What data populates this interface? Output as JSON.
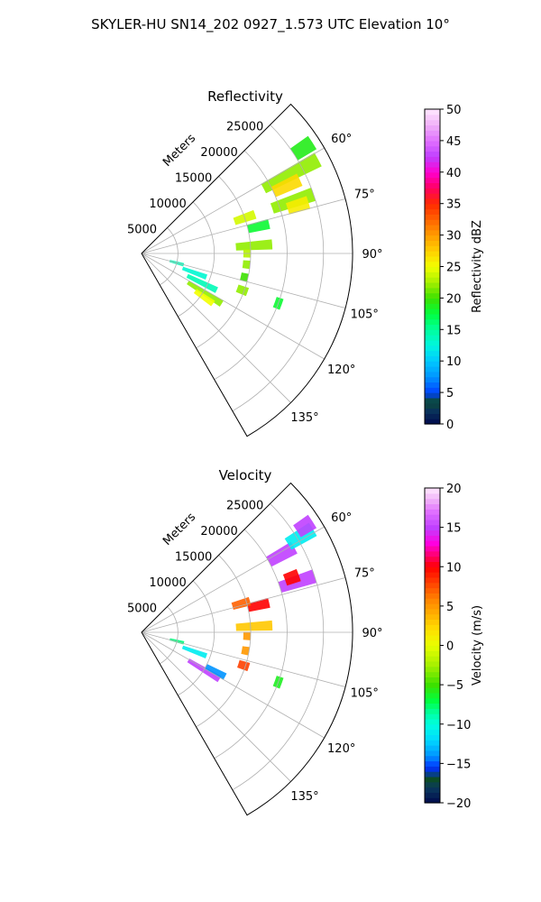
{
  "title": "SKYLER-HU  SN14_202  0927_1.573 UTC Elevation 10°",
  "chart_data": [
    {
      "type": "heatmap",
      "projection": "polar-sector",
      "title": "Reflectivity",
      "range_label": "Meters",
      "azimuth_range_deg": [
        45,
        150
      ],
      "radius_range_m": [
        0,
        29000
      ],
      "grid": true,
      "radial_ticks": [
        5000,
        10000,
        15000,
        20000,
        25000
      ],
      "radial_tick_labels": [
        "5000",
        "10000",
        "15000",
        "20000",
        "25000"
      ],
      "azimuth_ticks": [
        60,
        75,
        90,
        105,
        120,
        135
      ],
      "azimuth_tick_labels": [
        "60°",
        "75°",
        "90°",
        "105°",
        "120°",
        "135°"
      ],
      "colorbar": {
        "label": "Reflectivity dBZ",
        "range": [
          0,
          50
        ],
        "ticks": [
          0,
          5,
          10,
          15,
          20,
          25,
          30,
          35,
          40,
          45,
          50
        ],
        "tick_labels": [
          "0",
          "5",
          "10",
          "15",
          "20",
          "25",
          "30",
          "35",
          "40",
          "45",
          "50"
        ]
      },
      "echoes": [
        {
          "az": 62,
          "r_min": 19000,
          "r_max": 27500,
          "value": 22
        },
        {
          "az": 65,
          "r_min": 20000,
          "r_max": 24000,
          "value": 27
        },
        {
          "az": 57,
          "r_min": 25000,
          "r_max": 28000,
          "value": 19
        },
        {
          "az": 71,
          "r_min": 19000,
          "r_max": 25000,
          "value": 22
        },
        {
          "az": 73,
          "r_min": 21000,
          "r_max": 24000,
          "value": 26
        },
        {
          "az": 77,
          "r_min": 15000,
          "r_max": 18000,
          "value": 18
        },
        {
          "az": 71,
          "r_min": 13500,
          "r_max": 16500,
          "value": 24
        },
        {
          "az": 86,
          "r_min": 13000,
          "r_max": 18000,
          "value": 22
        },
        {
          "az": 90,
          "r_min": 14000,
          "r_max": 15000,
          "value": 23
        },
        {
          "az": 96,
          "r_min": 14000,
          "r_max": 15000,
          "value": 22
        },
        {
          "az": 103,
          "r_min": 14000,
          "r_max": 15000,
          "value": 20
        },
        {
          "az": 110,
          "r_min": 14000,
          "r_max": 15500,
          "value": 22
        },
        {
          "az": 105,
          "r_min": 4000,
          "r_max": 6000,
          "value": 14
        },
        {
          "az": 110,
          "r_min": 6000,
          "r_max": 9500,
          "value": 13
        },
        {
          "az": 122,
          "r_min": 7500,
          "r_max": 13000,
          "value": 22
        },
        {
          "az": 125,
          "r_min": 9000,
          "r_max": 12000,
          "value": 25
        },
        {
          "az": 116,
          "r_min": 7000,
          "r_max": 11500,
          "value": 14
        },
        {
          "az": 110,
          "r_min": 19500,
          "r_max": 20500,
          "value": 18
        }
      ]
    },
    {
      "type": "heatmap",
      "projection": "polar-sector",
      "title": "Velocity",
      "range_label": "Meters",
      "azimuth_range_deg": [
        45,
        150
      ],
      "radius_range_m": [
        0,
        29000
      ],
      "grid": true,
      "radial_ticks": [
        5000,
        10000,
        15000,
        20000,
        25000
      ],
      "radial_tick_labels": [
        "5000",
        "10000",
        "15000",
        "20000",
        "25000"
      ],
      "azimuth_ticks": [
        60,
        75,
        90,
        105,
        120,
        135
      ],
      "azimuth_tick_labels": [
        "60°",
        "75°",
        "90°",
        "105°",
        "120°",
        "135°"
      ],
      "colorbar": {
        "label": "Velocity (m/s)",
        "range": [
          -20,
          20
        ],
        "ticks": [
          -20,
          -15,
          -10,
          -5,
          0,
          5,
          10,
          15,
          20
        ],
        "tick_labels": [
          "−20",
          "−15",
          "−10",
          "−5",
          "0",
          "5",
          "10",
          "15",
          "20"
        ]
      },
      "echoes": [
        {
          "az": 61,
          "r_min": 20000,
          "r_max": 24000,
          "value": 15
        },
        {
          "az": 59,
          "r_min": 23500,
          "r_max": 27500,
          "value": -11
        },
        {
          "az": 57,
          "r_min": 25500,
          "r_max": 28000,
          "value": 15
        },
        {
          "az": 72,
          "r_min": 20000,
          "r_max": 25000,
          "value": 15
        },
        {
          "az": 70,
          "r_min": 21000,
          "r_max": 23000,
          "value": 10
        },
        {
          "az": 77,
          "r_min": 15000,
          "r_max": 18000,
          "value": 10
        },
        {
          "az": 74,
          "r_min": 13000,
          "r_max": 15500,
          "value": 7
        },
        {
          "az": 87,
          "r_min": 13000,
          "r_max": 18000,
          "value": 3
        },
        {
          "az": 92,
          "r_min": 14000,
          "r_max": 15000,
          "value": 5
        },
        {
          "az": 100,
          "r_min": 14000,
          "r_max": 15000,
          "value": 5
        },
        {
          "az": 108,
          "r_min": 14000,
          "r_max": 15500,
          "value": 8
        },
        {
          "az": 104,
          "r_min": 4000,
          "r_max": 6000,
          "value": -8
        },
        {
          "az": 110,
          "r_min": 6000,
          "r_max": 9500,
          "value": -11
        },
        {
          "az": 121,
          "r_min": 7500,
          "r_max": 12500,
          "value": 15
        },
        {
          "az": 118,
          "r_min": 10000,
          "r_max": 13000,
          "value": -14
        },
        {
          "az": 110,
          "r_min": 19500,
          "r_max": 20500,
          "value": -6
        }
      ]
    }
  ]
}
